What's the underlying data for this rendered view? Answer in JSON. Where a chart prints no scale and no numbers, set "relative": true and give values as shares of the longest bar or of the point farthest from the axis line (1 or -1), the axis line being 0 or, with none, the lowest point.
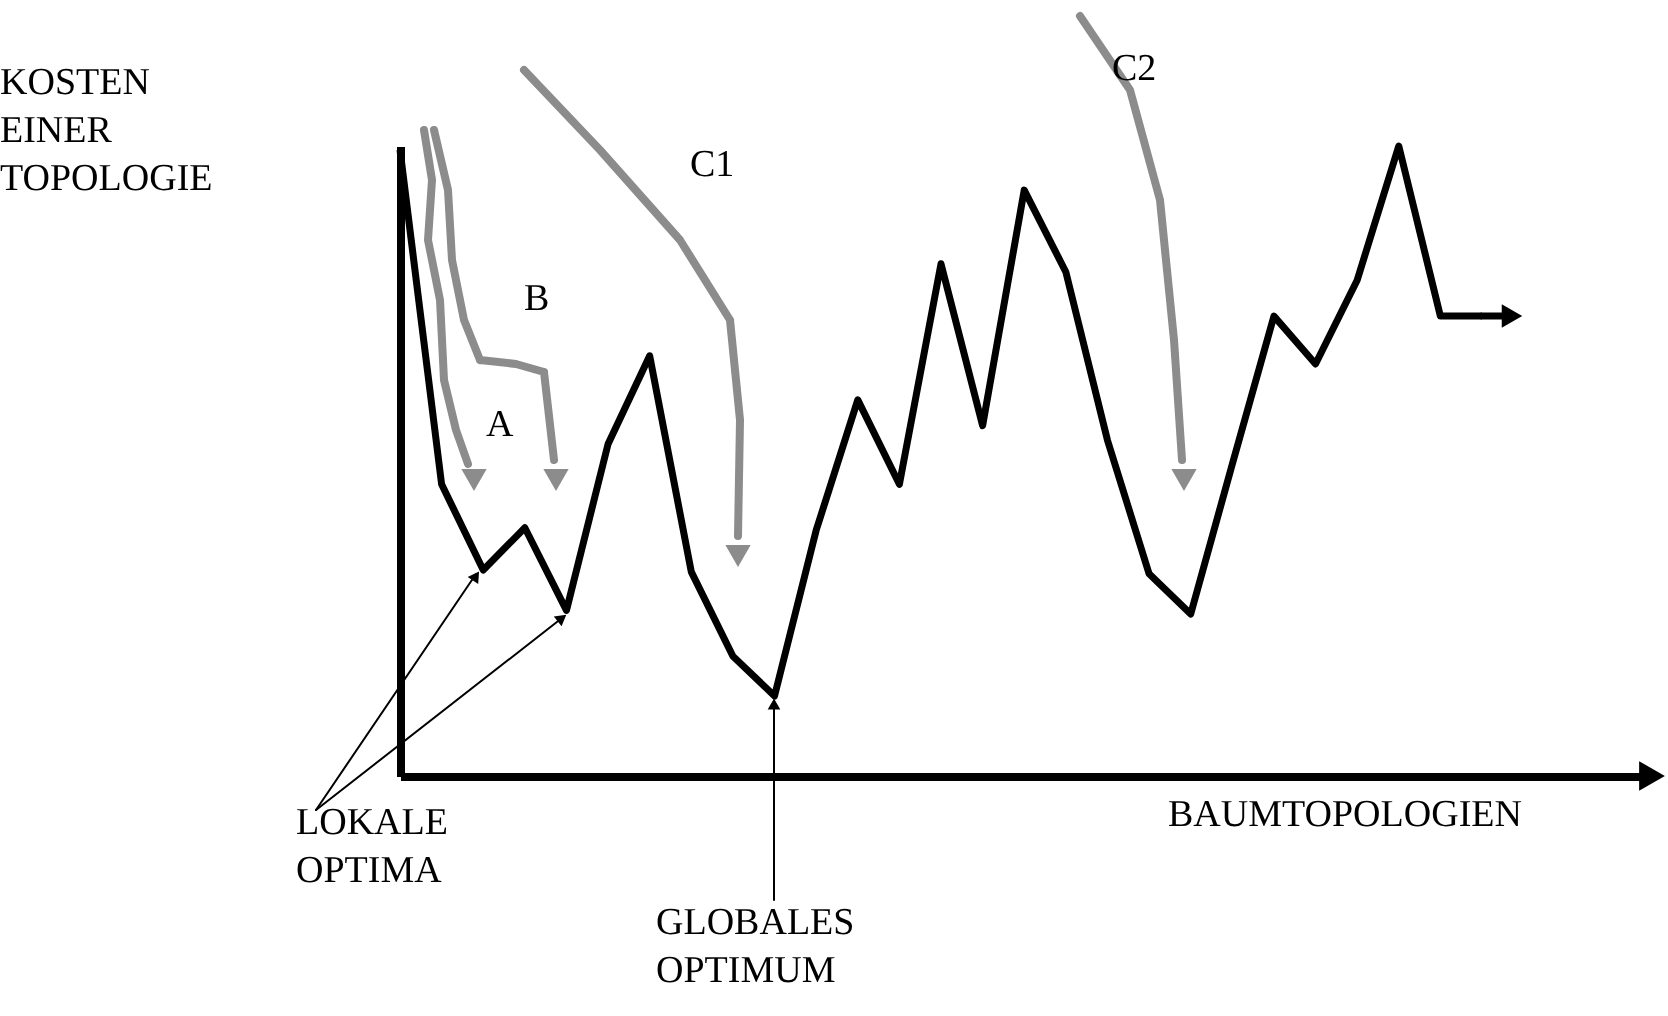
{
  "chart_data": {
    "type": "line",
    "relative": true,
    "color": "#000000",
    "tick_labels": false,
    "xlabel": "BAUMTOPOLOGIEN",
    "ylabel": "KOSTEN EINER TOPOLOGIE",
    "annotations": [
      "A",
      "B",
      "C1",
      "C2",
      "LOKALE OPTIMA",
      "GLOBALES OPTIMUM"
    ],
    "categories": [
      null,
      null,
      null,
      null,
      null,
      null,
      null,
      null,
      null,
      null,
      null,
      null,
      null,
      null,
      null,
      null,
      null,
      null,
      null,
      null,
      null,
      null,
      null,
      null,
      null,
      null,
      null
    ],
    "values": [
      0.994,
      0.463,
      0.327,
      0.394,
      0.263,
      0.527,
      0.667,
      0.324,
      0.19,
      0.127,
      0.39,
      0.597,
      0.463,
      0.813,
      0.556,
      0.93,
      0.8,
      0.533,
      0.321,
      0.257,
      0.495,
      0.73,
      0.654,
      0.787,
      1.0,
      0.73,
      0.73
    ]
  }
}
